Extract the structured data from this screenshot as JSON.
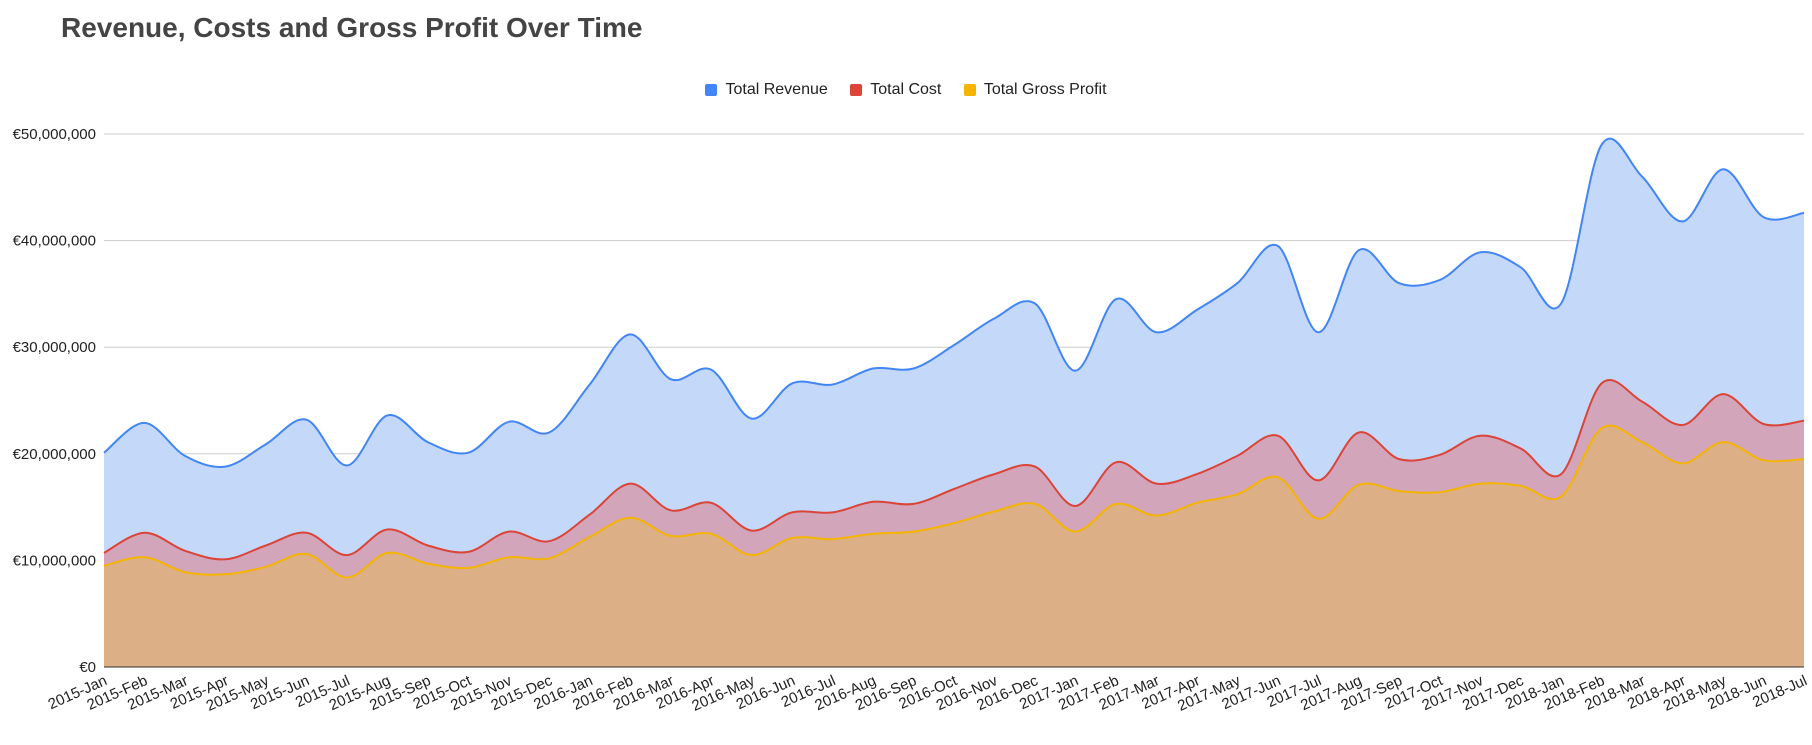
{
  "chart_data": {
    "type": "area",
    "title": "Revenue, Costs and Gross Profit Over Time",
    "xlabel": "",
    "ylabel": "",
    "ylim": [
      0,
      50000000
    ],
    "yticks": [
      "€0",
      "€10,000,000",
      "€20,000,000",
      "€30,000,000",
      "€40,000,000",
      "€50,000,000"
    ],
    "ytick_values": [
      0,
      10000000,
      20000000,
      30000000,
      40000000,
      50000000
    ],
    "legend_position": "top",
    "grid": true,
    "categories": [
      "2015-Jan",
      "2015-Feb",
      "2015-Mar",
      "2015-Apr",
      "2015-May",
      "2015-Jun",
      "2015-Jul",
      "2015-Aug",
      "2015-Sep",
      "2015-Oct",
      "2015-Nov",
      "2015-Dec",
      "2016-Jan",
      "2016-Feb",
      "2016-Mar",
      "2016-Apr",
      "2016-May",
      "2016-Jun",
      "2016-Jul",
      "2016-Aug",
      "2016-Sep",
      "2016-Oct",
      "2016-Nov",
      "2016-Dec",
      "2017-Jan",
      "2017-Feb",
      "2017-Mar",
      "2017-Apr",
      "2017-May",
      "2017-Jun",
      "2017-Jul",
      "2017-Aug",
      "2017-Sep",
      "2017-Oct",
      "2017-Nov",
      "2017-Dec",
      "2018-Jan",
      "2018-Feb",
      "2018-Mar",
      "2018-Apr",
      "2018-May",
      "2018-Jun",
      "2018-Jul"
    ],
    "series": [
      {
        "name": "Total Revenue",
        "color": "#4285f4",
        "fill": "#c4d9f9",
        "values": [
          20100000,
          22900000,
          19800000,
          18800000,
          20900000,
          23200000,
          18900000,
          23600000,
          21100000,
          20100000,
          23000000,
          22000000,
          26500000,
          31200000,
          27000000,
          27900000,
          23300000,
          26600000,
          26500000,
          28000000,
          28000000,
          30200000,
          32700000,
          34100000,
          27800000,
          34500000,
          31400000,
          33500000,
          36000000,
          39500000,
          31400000,
          39100000,
          36000000,
          36300000,
          38900000,
          37500000,
          34100000,
          49000000,
          46000000,
          41800000,
          46700000,
          42200000,
          42600000
        ]
      },
      {
        "name": "Total Cost",
        "color": "#db4437",
        "fill": "#d2a5bb",
        "values": [
          10700000,
          12600000,
          10900000,
          10100000,
          11400000,
          12600000,
          10500000,
          12900000,
          11400000,
          10800000,
          12700000,
          11800000,
          14300000,
          17200000,
          14700000,
          15400000,
          12800000,
          14500000,
          14500000,
          15500000,
          15300000,
          16700000,
          18100000,
          18800000,
          15100000,
          19200000,
          17200000,
          18100000,
          19800000,
          21700000,
          17500000,
          22000000,
          19500000,
          19900000,
          21700000,
          20500000,
          18100000,
          26600000,
          24900000,
          22700000,
          25600000,
          22800000,
          23100000
        ]
      },
      {
        "name": "Total Gross Profit",
        "color": "#f4b400",
        "fill": "#dcaf86",
        "values": [
          9500000,
          10300000,
          8900000,
          8700000,
          9400000,
          10600000,
          8400000,
          10700000,
          9700000,
          9300000,
          10300000,
          10200000,
          12200000,
          14000000,
          12300000,
          12500000,
          10500000,
          12100000,
          12000000,
          12500000,
          12700000,
          13500000,
          14600000,
          15300000,
          12700000,
          15300000,
          14200000,
          15400000,
          16200000,
          17800000,
          13900000,
          17100000,
          16500000,
          16400000,
          17200000,
          17000000,
          16000000,
          22400000,
          21100000,
          19100000,
          21100000,
          19400000,
          19500000
        ]
      }
    ]
  }
}
